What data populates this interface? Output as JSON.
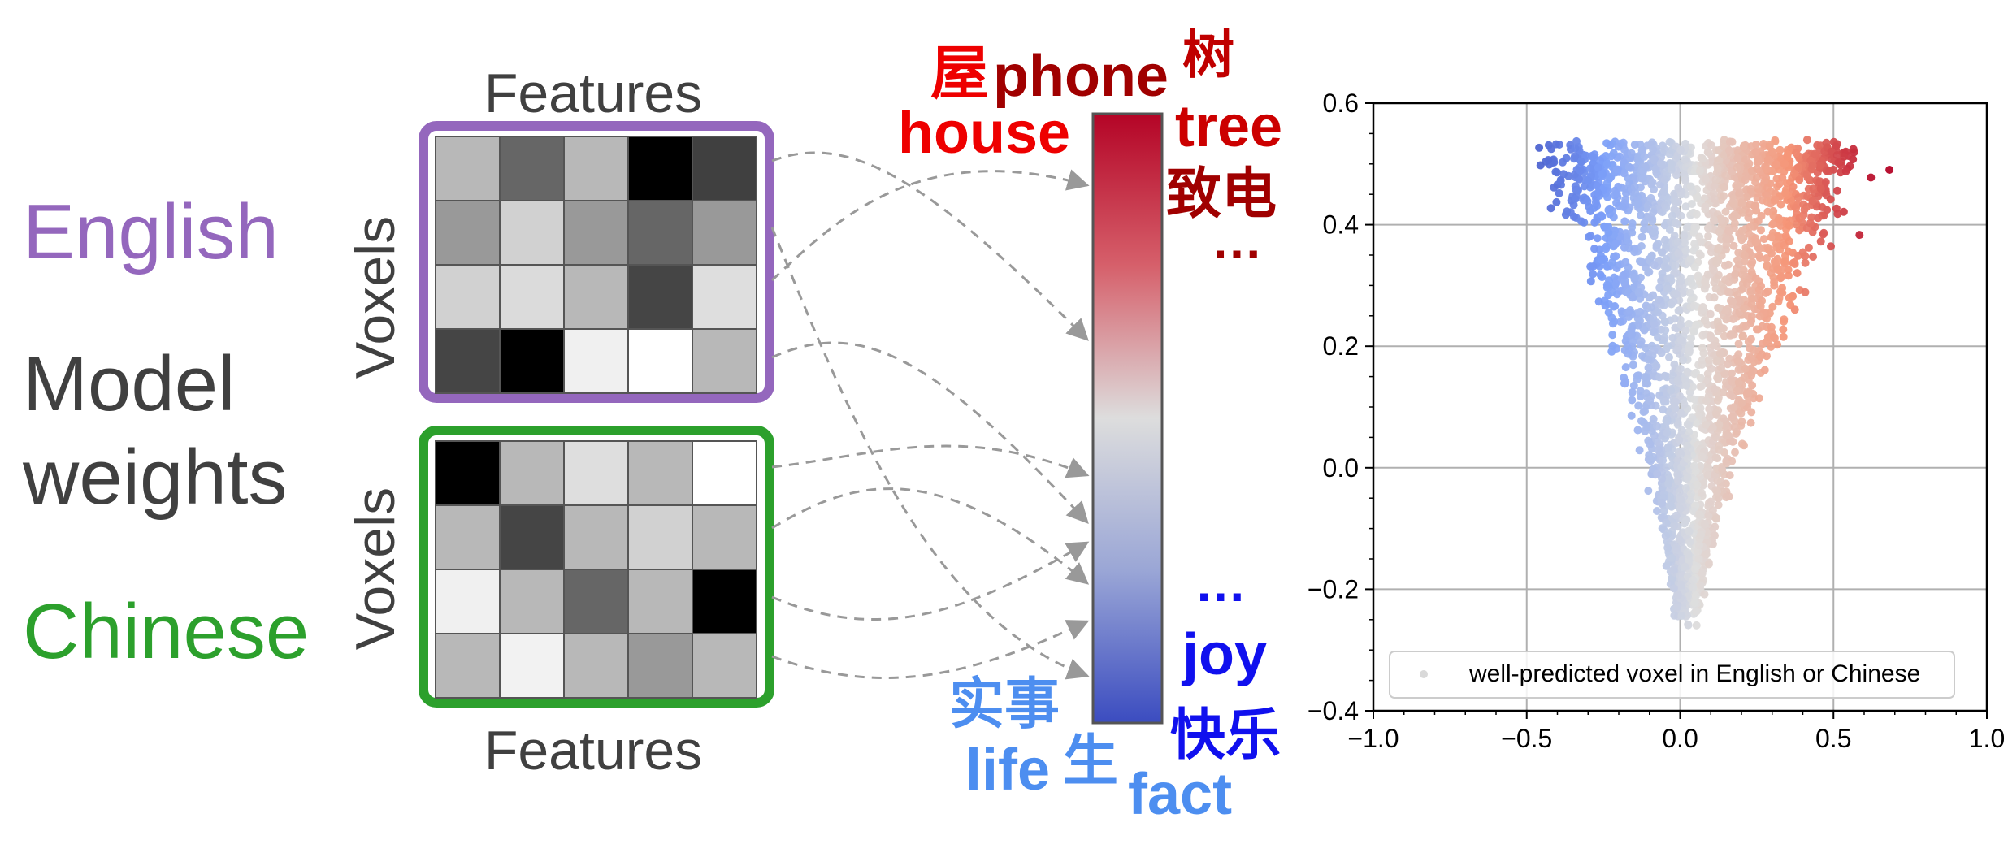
{
  "colors": {
    "english": "#9467bd",
    "chinese": "#2ca02c",
    "model": "#404040",
    "dark_red": "#a00000",
    "red": "#ee0000",
    "blue": "#1010ee",
    "light_blue": "#4d8ef0",
    "arrow": "#999999"
  },
  "left_labels": {
    "english": "English",
    "model_line1": "Model",
    "model_line2": "weights",
    "chinese": "Chinese"
  },
  "matrices": {
    "top_features_label": "Features",
    "bottom_features_label": "Features",
    "voxels_label_top": "Voxels",
    "voxels_label_bottom": "Voxels",
    "english_matrix": [
      [
        0.72,
        0.4,
        0.72,
        0.0,
        0.25
      ],
      [
        0.6,
        0.82,
        0.6,
        0.4,
        0.6
      ],
      [
        0.82,
        0.86,
        0.72,
        0.27,
        0.87
      ],
      [
        0.27,
        0.0,
        0.94,
        1.0,
        0.72
      ]
    ],
    "chinese_matrix": [
      [
        0.0,
        0.72,
        0.87,
        0.72,
        1.0
      ],
      [
        0.72,
        0.27,
        0.72,
        0.82,
        0.72
      ],
      [
        0.94,
        0.72,
        0.4,
        0.72,
        0.0
      ],
      [
        0.72,
        0.95,
        0.72,
        0.6,
        0.72
      ]
    ]
  },
  "colorbar_words": {
    "top_left_zh": "屋",
    "top_phone": "phone",
    "top_right_zh": "树",
    "house": "house",
    "tree": "tree",
    "zhidian": "致电",
    "top_ellipsis": "…",
    "bottom_ellipsis": "…",
    "joy": "joy",
    "kuaile": "快乐",
    "shishi": "实事",
    "life": "life",
    "sheng": "生",
    "fact": "fact"
  },
  "chart_data": {
    "type": "scatter",
    "xlim": [
      -1.0,
      1.0
    ],
    "ylim": [
      -0.4,
      0.6
    ],
    "xticks": [
      "−1.0",
      "−0.5",
      "0.0",
      "0.5",
      "1.0"
    ],
    "yticks": [
      "−0.4",
      "−0.2",
      "0.0",
      "0.2",
      "0.4",
      "0.6"
    ],
    "grid": true,
    "legend": {
      "label": "well-predicted voxel in English or Chinese",
      "position": "lower-center"
    },
    "color_by": "x",
    "colormap": "coolwarm",
    "points_summary": {
      "shape": "V-shaped cloud, wide at top (y≈0.3–0.5, x from ≈−0.6 to ≈0.75), narrowing to a tip near x≈0.0, y≈−0.25"
    }
  }
}
